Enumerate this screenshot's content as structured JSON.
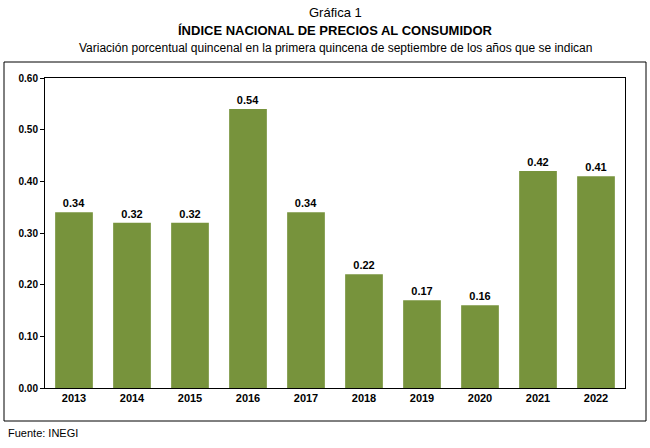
{
  "chart_data": {
    "type": "bar",
    "title": "ÍNDICE NACIONAL DE PRECIOS AL CONSUMIDOR",
    "subtitle": "Variación porcentual quincenal en la primera quincena de septiembre de los años que se indican",
    "annotations": [
      "Gráfica 1",
      "Fuente: INEGI"
    ],
    "categories": [
      "2013",
      "2014",
      "2015",
      "2016",
      "2017",
      "2018",
      "2019",
      "2020",
      "2021",
      "2022"
    ],
    "values": [
      0.34,
      0.32,
      0.32,
      0.54,
      0.34,
      0.22,
      0.17,
      0.16,
      0.42,
      0.41
    ],
    "color": "#77933c",
    "ylim": [
      0,
      0.6
    ],
    "yticks": [
      {
        "value": 0,
        "label": "0.00"
      },
      {
        "value": 0.1,
        "label": "0.10"
      },
      {
        "value": 0.2,
        "label": "0.20"
      },
      {
        "value": 0.3,
        "label": "0.30"
      },
      {
        "value": 0.4,
        "label": "0.40"
      },
      {
        "value": 0.5,
        "label": "0.50"
      },
      {
        "value": 0.6,
        "label": "0.60"
      }
    ],
    "grid": false,
    "data_labels": true
  }
}
